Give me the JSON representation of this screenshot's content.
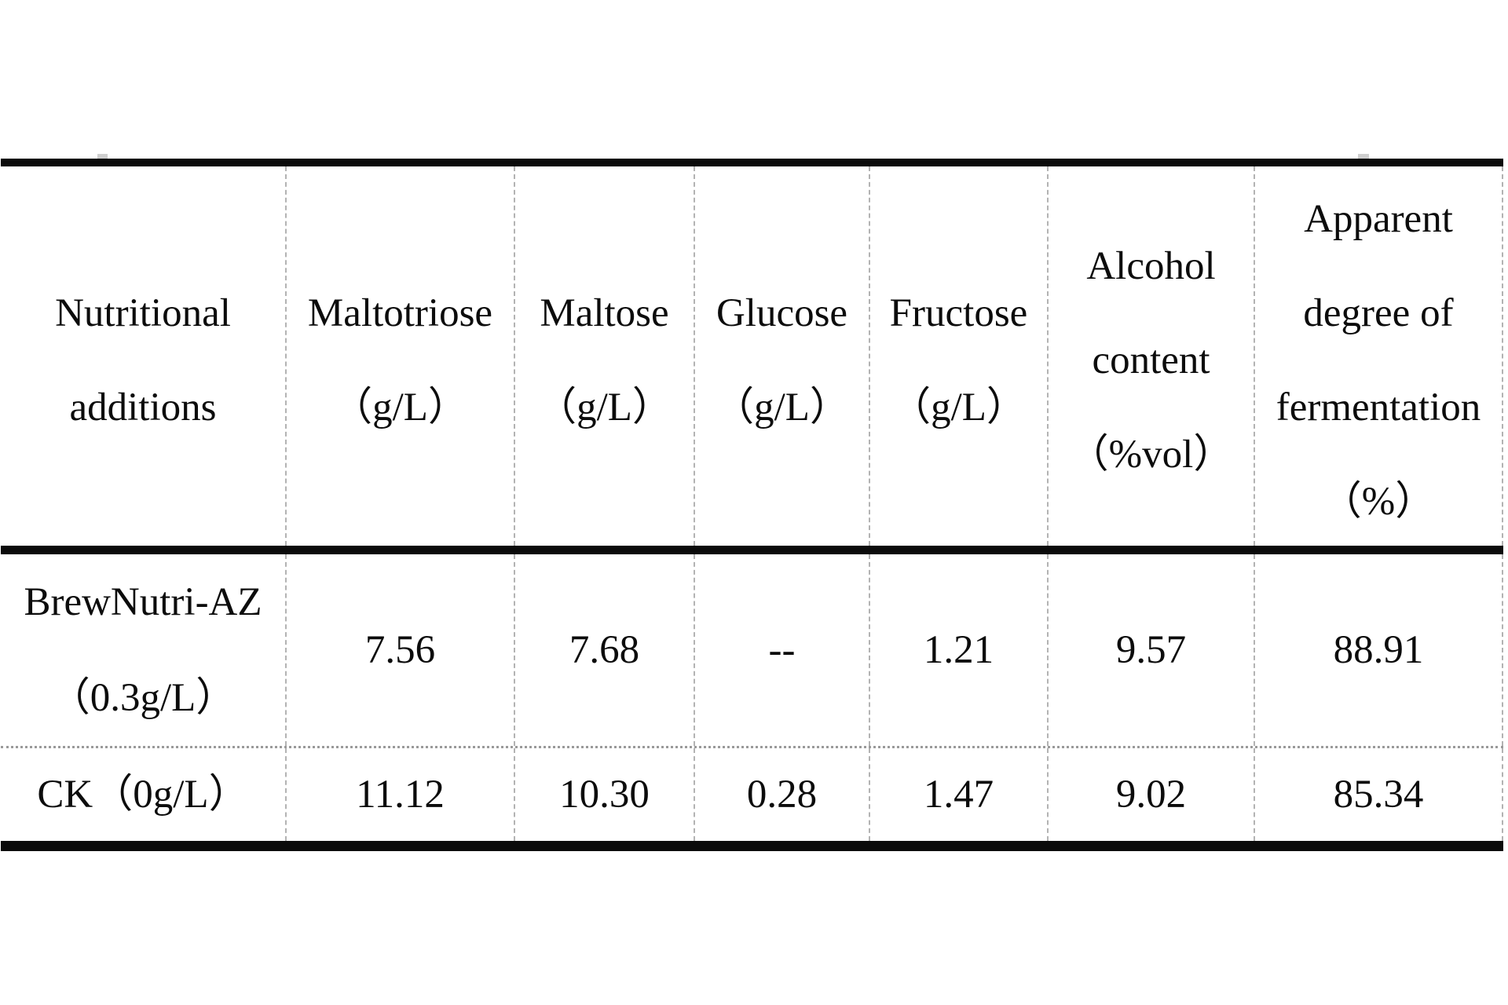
{
  "table": {
    "header_columns": [
      {
        "lines": [
          "Nutritional",
          "additions"
        ]
      },
      {
        "lines": [
          "Maltotriose",
          "（g/L）"
        ]
      },
      {
        "lines": [
          "Maltose",
          "（g/L）"
        ]
      },
      {
        "lines": [
          "Glucose",
          "（g/L）"
        ]
      },
      {
        "lines": [
          "Fructose",
          "（g/L）"
        ]
      },
      {
        "lines": [
          "Alcohol",
          "content",
          "（%vol）"
        ]
      },
      {
        "lines": [
          "Apparent",
          "degree of",
          "fermentation",
          "（%）"
        ]
      }
    ],
    "rows": [
      {
        "label_lines": [
          "BrewNutri-AZ",
          "（0.3g/L）"
        ],
        "values": [
          "7.56",
          "7.68",
          "--",
          "1.21",
          "9.57",
          "88.91"
        ]
      },
      {
        "label_lines": [
          "CK（0g/L）"
        ],
        "values": [
          "11.12",
          "10.30",
          "0.28",
          "1.47",
          "9.02",
          "85.34"
        ]
      }
    ],
    "colors": {
      "rule_black": "#0b0b0b",
      "grid_dash_gray": "#b3b3b3",
      "row_divider_gray": "#9a9a9a",
      "text": "#0c0c0c",
      "background": "#ffffff"
    }
  }
}
